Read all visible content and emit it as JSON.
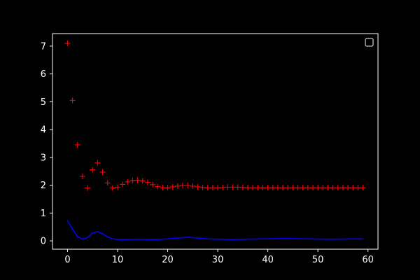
{
  "chart_data": {
    "type": "scatter",
    "title": "",
    "xlabel": "",
    "ylabel": "",
    "xlim": [
      -3,
      62
    ],
    "ylim": [
      -0.3,
      7.45
    ],
    "xticks": [
      0,
      10,
      20,
      30,
      40,
      50,
      60
    ],
    "yticks": [
      0,
      1,
      2,
      3,
      4,
      5,
      6,
      7
    ],
    "grid": false,
    "legend": "top-right",
    "colors": {
      "background": "#000000",
      "axes": "#ffffff",
      "markers": "#ff0000",
      "line": "#0000ff"
    },
    "series": [
      {
        "kind": "markers",
        "marker": "+",
        "x": [
          0,
          1,
          2,
          3,
          4,
          5,
          6,
          7,
          8,
          9,
          10,
          11,
          12,
          13,
          14,
          15,
          16,
          17,
          18,
          19,
          20,
          21,
          22,
          23,
          24,
          25,
          26,
          27,
          28,
          29,
          30,
          31,
          32,
          33,
          34,
          35,
          36,
          37,
          38,
          39,
          40,
          41,
          42,
          43,
          44,
          45,
          46,
          47,
          48,
          49,
          50,
          51,
          52,
          53,
          54,
          55,
          56,
          57,
          58,
          59
        ],
        "values": [
          7.1,
          5.05,
          3.45,
          2.32,
          1.9,
          2.55,
          2.8,
          2.47,
          2.08,
          1.9,
          1.93,
          2.03,
          2.12,
          2.17,
          2.18,
          2.16,
          2.1,
          2.02,
          1.95,
          1.91,
          1.91,
          1.94,
          1.97,
          1.99,
          1.99,
          1.97,
          1.94,
          1.92,
          1.91,
          1.91,
          1.91,
          1.92,
          1.93,
          1.93,
          1.93,
          1.92,
          1.91,
          1.91,
          1.91,
          1.91,
          1.91,
          1.91,
          1.91,
          1.91,
          1.91,
          1.91,
          1.91,
          1.91,
          1.91,
          1.91,
          1.91,
          1.91,
          1.91,
          1.91,
          1.91,
          1.91,
          1.91,
          1.91,
          1.91,
          1.91
        ]
      },
      {
        "kind": "line",
        "x": [
          0,
          1,
          2,
          3,
          4,
          5,
          6,
          7,
          8,
          9,
          10,
          12,
          14,
          16,
          18,
          20,
          22,
          24,
          26,
          28,
          30,
          33,
          36,
          39,
          42,
          45,
          48,
          51,
          54,
          57,
          59
        ],
        "values": [
          0.72,
          0.42,
          0.15,
          0.06,
          0.12,
          0.28,
          0.33,
          0.26,
          0.14,
          0.07,
          0.05,
          0.05,
          0.06,
          0.05,
          0.05,
          0.07,
          0.1,
          0.13,
          0.1,
          0.07,
          0.06,
          0.05,
          0.06,
          0.07,
          0.08,
          0.08,
          0.07,
          0.06,
          0.06,
          0.07,
          0.07
        ]
      }
    ]
  }
}
